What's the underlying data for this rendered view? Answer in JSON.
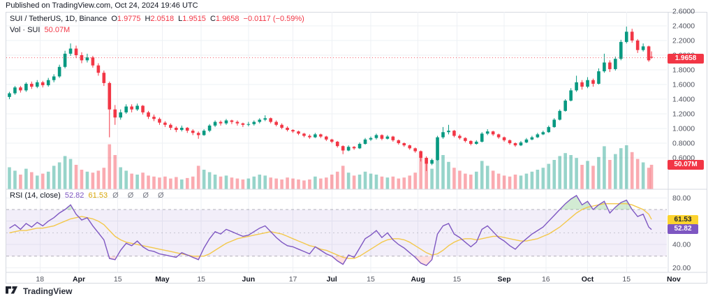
{
  "page": {
    "published_line": "Published on TradingView.com, Oct 24, 2024 19:46 UTC",
    "footer_brand": "TradingView"
  },
  "legend": {
    "symbol": "SUI / TetherUS, 1D, Binance",
    "o_label": "O",
    "o": "1.9775",
    "h_label": "H",
    "h": "2.0518",
    "l_label": "L",
    "l": "1.9515",
    "c_label": "C",
    "c": "1.9658",
    "change": "−0.0117 (−0.59%)",
    "vol_label": "Vol · SUI",
    "vol_value": "50.07M"
  },
  "rsi_legend": {
    "title": "RSI (14, close)",
    "value": "52.82",
    "ma_value": "61.53",
    "empty_values": "Ø Ø Ø Ø"
  },
  "badges": {
    "price": "1.9658",
    "volume": "50.07M",
    "rsi_ma": "61.53",
    "rsi": "52.82"
  },
  "colors": {
    "up": "#089981",
    "down": "#F23645",
    "vol_up": "rgba(8,153,129,0.42)",
    "vol_down": "rgba(242,54,69,0.42)",
    "rsi_line": "#7E57C2",
    "rsi_ma_line": "#F3C84B",
    "rsi_ma_text": "#D9A708",
    "band_fill": "rgba(126,87,194,0.10)",
    "overbought_fill": "rgba(76,175,80,0.25)",
    "oversold_fill": "rgba(255,82,82,0.18)",
    "grid": "#EEF0F4",
    "axis_text": "#50535E",
    "price_line": "#F23645",
    "badge_price_bg": "#F23645",
    "badge_rsi_bg": "#7E57C2",
    "badge_rsi_ma_bg": "#FCD32F",
    "frame": "#D6D9E0"
  },
  "chart_data": {
    "type": "candlestick",
    "title": "SUI / TetherUS",
    "interval": "1D",
    "exchange": "Binance",
    "start_date": "2024-03-07",
    "day_step": 2,
    "last_day": 231,
    "last_close": 1.9658,
    "volume_unit": "M",
    "price_ticks": [
      2.6,
      2.4,
      2.2,
      2.0,
      1.8,
      1.6,
      1.4,
      1.2,
      1.0,
      0.8,
      0.6
    ],
    "time_ticks": [
      {
        "label": "18",
        "day": 11,
        "major": false
      },
      {
        "label": "Apr",
        "day": 25,
        "major": true
      },
      {
        "label": "15",
        "day": 39,
        "major": false
      },
      {
        "label": "May",
        "day": 55,
        "major": true
      },
      {
        "label": "15",
        "day": 69,
        "major": false
      },
      {
        "label": "Jun",
        "day": 86,
        "major": true
      },
      {
        "label": "17",
        "day": 102,
        "major": false
      },
      {
        "label": "Jul",
        "day": 116,
        "major": true
      },
      {
        "label": "15",
        "day": 130,
        "major": false
      },
      {
        "label": "Aug",
        "day": 147,
        "major": true
      },
      {
        "label": "15",
        "day": 161,
        "major": false
      },
      {
        "label": "Sep",
        "day": 178,
        "major": true
      },
      {
        "label": "16",
        "day": 193,
        "major": false
      },
      {
        "label": "Oct",
        "day": 208,
        "major": true
      },
      {
        "label": "15",
        "day": 222,
        "major": false
      },
      {
        "label": "Nov",
        "day": 239,
        "major": true
      }
    ],
    "candles": [
      [
        1.43,
        1.5,
        1.4,
        1.48,
        45
      ],
      [
        1.48,
        1.58,
        1.46,
        1.56,
        38
      ],
      [
        1.56,
        1.58,
        1.49,
        1.52,
        30
      ],
      [
        1.52,
        1.63,
        1.5,
        1.61,
        42
      ],
      [
        1.61,
        1.64,
        1.54,
        1.57,
        35
      ],
      [
        1.57,
        1.66,
        1.55,
        1.63,
        28
      ],
      [
        1.63,
        1.65,
        1.56,
        1.59,
        32
      ],
      [
        1.59,
        1.69,
        1.57,
        1.66,
        36
      ],
      [
        1.66,
        1.74,
        1.63,
        1.71,
        48
      ],
      [
        1.71,
        1.87,
        1.69,
        1.84,
        55
      ],
      [
        1.84,
        2.06,
        1.82,
        2.02,
        68
      ],
      [
        2.02,
        2.16,
        1.99,
        2.09,
        62
      ],
      [
        2.09,
        2.13,
        1.96,
        2.0,
        50
      ],
      [
        2.0,
        2.04,
        1.89,
        1.93,
        40
      ],
      [
        1.93,
        2.02,
        1.9,
        1.97,
        36
      ],
      [
        1.97,
        1.99,
        1.83,
        1.86,
        34
      ],
      [
        1.86,
        1.89,
        1.72,
        1.76,
        38
      ],
      [
        1.76,
        1.79,
        1.58,
        1.62,
        44
      ],
      [
        1.62,
        1.64,
        0.88,
        1.26,
        92
      ],
      [
        1.26,
        1.32,
        1.05,
        1.15,
        70
      ],
      [
        1.15,
        1.26,
        1.12,
        1.22,
        45
      ],
      [
        1.22,
        1.33,
        1.2,
        1.3,
        38
      ],
      [
        1.3,
        1.33,
        1.22,
        1.26,
        32
      ],
      [
        1.26,
        1.34,
        1.24,
        1.31,
        30
      ],
      [
        1.31,
        1.32,
        1.19,
        1.22,
        34
      ],
      [
        1.22,
        1.24,
        1.13,
        1.16,
        28
      ],
      [
        1.16,
        1.19,
        1.1,
        1.13,
        26
      ],
      [
        1.13,
        1.15,
        1.05,
        1.08,
        24
      ],
      [
        1.08,
        1.1,
        1.02,
        1.05,
        26
      ],
      [
        1.05,
        1.07,
        0.98,
        1.01,
        22
      ],
      [
        1.01,
        1.03,
        0.95,
        0.98,
        25
      ],
      [
        0.98,
        1.04,
        0.96,
        1.01,
        20
      ],
      [
        1.01,
        1.02,
        0.94,
        0.97,
        23
      ],
      [
        0.97,
        0.99,
        0.91,
        0.94,
        26
      ],
      [
        0.94,
        0.96,
        0.86,
        0.91,
        48
      ],
      [
        0.91,
        0.99,
        0.9,
        0.97,
        40
      ],
      [
        0.97,
        1.06,
        0.95,
        1.04,
        35
      ],
      [
        1.04,
        1.11,
        1.02,
        1.09,
        30
      ],
      [
        1.09,
        1.11,
        1.04,
        1.07,
        26
      ],
      [
        1.07,
        1.13,
        1.05,
        1.11,
        28
      ],
      [
        1.11,
        1.12,
        1.06,
        1.09,
        24
      ],
      [
        1.09,
        1.11,
        1.04,
        1.07,
        22
      ],
      [
        1.07,
        1.08,
        1.02,
        1.05,
        20
      ],
      [
        1.05,
        1.09,
        1.03,
        1.06,
        22
      ],
      [
        1.06,
        1.11,
        1.04,
        1.09,
        26
      ],
      [
        1.09,
        1.14,
        1.07,
        1.12,
        30
      ],
      [
        1.12,
        1.18,
        1.1,
        1.14,
        28
      ],
      [
        1.14,
        1.15,
        1.07,
        1.09,
        24
      ],
      [
        1.09,
        1.11,
        1.03,
        1.05,
        22
      ],
      [
        1.05,
        1.07,
        0.99,
        1.01,
        20
      ],
      [
        1.01,
        1.03,
        0.96,
        0.98,
        24
      ],
      [
        0.98,
        0.99,
        0.94,
        0.96,
        22
      ],
      [
        0.96,
        0.97,
        0.91,
        0.93,
        20
      ],
      [
        0.93,
        0.94,
        0.88,
        0.9,
        18
      ],
      [
        0.9,
        0.92,
        0.86,
        0.88,
        20
      ],
      [
        0.88,
        0.94,
        0.87,
        0.92,
        26
      ],
      [
        0.92,
        0.93,
        0.87,
        0.89,
        22
      ],
      [
        0.89,
        0.9,
        0.83,
        0.85,
        24
      ],
      [
        0.85,
        0.86,
        0.8,
        0.82,
        30
      ],
      [
        0.82,
        0.83,
        0.74,
        0.76,
        36
      ],
      [
        0.76,
        0.77,
        0.65,
        0.7,
        48
      ],
      [
        0.7,
        0.77,
        0.69,
        0.75,
        34
      ],
      [
        0.75,
        0.76,
        0.71,
        0.73,
        28
      ],
      [
        0.73,
        0.81,
        0.72,
        0.79,
        30
      ],
      [
        0.79,
        0.87,
        0.78,
        0.85,
        36
      ],
      [
        0.85,
        0.89,
        0.83,
        0.87,
        32
      ],
      [
        0.87,
        0.93,
        0.85,
        0.91,
        30
      ],
      [
        0.91,
        0.92,
        0.84,
        0.86,
        26
      ],
      [
        0.86,
        0.91,
        0.85,
        0.89,
        24
      ],
      [
        0.89,
        0.9,
        0.82,
        0.84,
        26
      ],
      [
        0.84,
        0.85,
        0.78,
        0.8,
        22
      ],
      [
        0.8,
        0.81,
        0.75,
        0.77,
        24
      ],
      [
        0.77,
        0.78,
        0.71,
        0.73,
        28
      ],
      [
        0.73,
        0.74,
        0.67,
        0.69,
        34
      ],
      [
        0.69,
        0.7,
        0.55,
        0.6,
        78
      ],
      [
        0.6,
        0.62,
        0.42,
        0.52,
        60
      ],
      [
        0.52,
        0.59,
        0.5,
        0.57,
        42
      ],
      [
        0.57,
        0.9,
        0.56,
        0.88,
        96
      ],
      [
        0.88,
        1.02,
        0.86,
        0.95,
        70
      ],
      [
        0.95,
        1.05,
        0.92,
        0.97,
        56
      ],
      [
        0.97,
        0.98,
        0.88,
        0.9,
        44
      ],
      [
        0.9,
        0.92,
        0.85,
        0.87,
        38
      ],
      [
        0.87,
        0.88,
        0.81,
        0.83,
        32
      ],
      [
        0.83,
        0.84,
        0.77,
        0.79,
        30
      ],
      [
        0.79,
        0.84,
        0.78,
        0.82,
        36
      ],
      [
        0.82,
        0.95,
        0.81,
        0.93,
        58
      ],
      [
        0.93,
        0.99,
        0.91,
        0.96,
        48
      ],
      [
        0.96,
        0.97,
        0.9,
        0.92,
        38
      ],
      [
        0.92,
        0.93,
        0.86,
        0.88,
        32
      ],
      [
        0.88,
        0.89,
        0.82,
        0.84,
        28
      ],
      [
        0.84,
        0.85,
        0.78,
        0.8,
        26
      ],
      [
        0.8,
        0.81,
        0.75,
        0.77,
        30
      ],
      [
        0.77,
        0.83,
        0.76,
        0.81,
        28
      ],
      [
        0.81,
        0.87,
        0.8,
        0.85,
        32
      ],
      [
        0.85,
        0.9,
        0.84,
        0.88,
        36
      ],
      [
        0.88,
        0.94,
        0.87,
        0.92,
        40
      ],
      [
        0.92,
        0.97,
        0.91,
        0.95,
        44
      ],
      [
        0.95,
        1.04,
        0.94,
        1.02,
        52
      ],
      [
        1.02,
        1.14,
        1.01,
        1.12,
        60
      ],
      [
        1.12,
        1.26,
        1.11,
        1.24,
        68
      ],
      [
        1.24,
        1.4,
        1.23,
        1.38,
        74
      ],
      [
        1.38,
        1.55,
        1.37,
        1.52,
        70
      ],
      [
        1.52,
        1.72,
        1.5,
        1.63,
        64
      ],
      [
        1.63,
        1.66,
        1.53,
        1.57,
        50
      ],
      [
        1.57,
        1.7,
        1.55,
        1.66,
        58
      ],
      [
        1.66,
        1.68,
        1.57,
        1.61,
        48
      ],
      [
        1.61,
        1.82,
        1.6,
        1.78,
        66
      ],
      [
        1.78,
        2.02,
        1.76,
        1.9,
        88
      ],
      [
        1.9,
        1.93,
        1.77,
        1.81,
        60
      ],
      [
        1.81,
        1.98,
        1.79,
        1.95,
        72
      ],
      [
        1.95,
        2.21,
        1.93,
        2.18,
        84
      ],
      [
        2.18,
        2.39,
        2.16,
        2.32,
        90
      ],
      [
        2.32,
        2.36,
        2.17,
        2.2,
        76
      ],
      [
        2.2,
        2.22,
        2.03,
        2.07,
        62
      ],
      [
        2.07,
        2.16,
        2.05,
        2.12,
        55
      ],
      [
        2.12,
        2.13,
        1.91,
        1.93,
        44
      ],
      [
        1.9775,
        2.0518,
        1.9515,
        1.9658,
        50.07
      ]
    ],
    "rsi": {
      "length": 14,
      "source": "close",
      "bands": {
        "upper": 70,
        "middle": 50,
        "lower": 30
      },
      "axis_ticks": [
        80,
        40,
        20
      ],
      "values": [
        54,
        57,
        53,
        58,
        55,
        59,
        56,
        60,
        63,
        67,
        70,
        74,
        66,
        61,
        63,
        56,
        50,
        44,
        28,
        27,
        35,
        41,
        39,
        43,
        38,
        35,
        34,
        32,
        31,
        30,
        29,
        33,
        31,
        29,
        27,
        37,
        45,
        51,
        49,
        53,
        51,
        49,
        47,
        48,
        51,
        54,
        56,
        51,
        46,
        42,
        39,
        38,
        36,
        34,
        32,
        38,
        35,
        32,
        30,
        26,
        23,
        31,
        29,
        37,
        45,
        48,
        52,
        46,
        50,
        44,
        40,
        37,
        33,
        29,
        24,
        22,
        27,
        49,
        56,
        58,
        49,
        46,
        42,
        38,
        42,
        53,
        56,
        51,
        46,
        43,
        39,
        36,
        41,
        45,
        49,
        52,
        55,
        60,
        65,
        70,
        75,
        79,
        82,
        74,
        77,
        70,
        74,
        77,
        67,
        72,
        76,
        78,
        70,
        64,
        66,
        55,
        52.82
      ],
      "ma": [
        50,
        51,
        52,
        52,
        53,
        54,
        54,
        55,
        56,
        58,
        60,
        62,
        63,
        64,
        63,
        62,
        60,
        57,
        52,
        47,
        44,
        42,
        41,
        40,
        39,
        38,
        37,
        36,
        35,
        34,
        33,
        32,
        31,
        30,
        30,
        30,
        32,
        35,
        38,
        41,
        43,
        45,
        46,
        47,
        48,
        49,
        50,
        51,
        50,
        49,
        47,
        45,
        43,
        41,
        39,
        38,
        36,
        35,
        33,
        31,
        29,
        28,
        28,
        30,
        33,
        36,
        39,
        42,
        44,
        45,
        45,
        44,
        42,
        39,
        36,
        33,
        31,
        32,
        35,
        39,
        42,
        44,
        45,
        45,
        44,
        45,
        46,
        47,
        47,
        46,
        45,
        44,
        43,
        43,
        44,
        45,
        47,
        49,
        52,
        55,
        59,
        63,
        67,
        70,
        72,
        73,
        74,
        75,
        75,
        75,
        75,
        75,
        74,
        72,
        70,
        66,
        61.53
      ]
    }
  }
}
